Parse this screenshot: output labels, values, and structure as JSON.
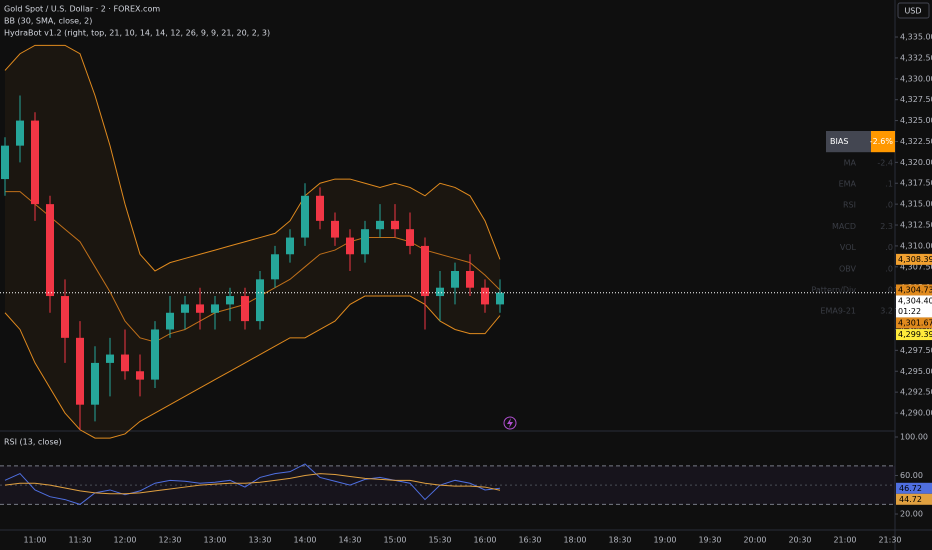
{
  "header": {
    "symbol": "Gold Spot / U.S. Dollar · 2 · FOREX.com",
    "indicator1": "BB (30, SMA, close, 2)",
    "indicator2": "HydraBot v1.2 (right, top, 21, 10, 14, 14, 12, 26, 9, 9, 21, 20, 2, 3)",
    "currency": "USD"
  },
  "chart_data": [
    {
      "type": "candlestick",
      "x": [
        "10:40",
        "10:50",
        "11:00",
        "11:10",
        "11:20",
        "11:30",
        "11:40",
        "11:50",
        "12:00",
        "12:10",
        "12:20",
        "12:30",
        "12:40",
        "12:50",
        "13:00",
        "13:10",
        "13:20",
        "13:30",
        "13:40",
        "13:50",
        "14:00",
        "14:10",
        "14:20",
        "14:30",
        "14:40",
        "14:50",
        "15:00",
        "15:10",
        "15:20",
        "15:30",
        "15:40",
        "15:50",
        "16:00",
        "16:10"
      ],
      "open": [
        4318,
        4322,
        4325,
        4315,
        4304,
        4299,
        4291,
        4296,
        4297,
        4295,
        4294,
        4300,
        4302,
        4303,
        4302,
        4303,
        4304,
        4301,
        4306,
        4309,
        4311,
        4316,
        4313,
        4311,
        4309,
        4312,
        4313,
        4312,
        4310,
        4304,
        4305,
        4307,
        4305,
        4303
      ],
      "high": [
        4323,
        4328,
        4326,
        4316,
        4306,
        4301,
        4298,
        4299,
        4300,
        4297,
        4301,
        4304,
        4304,
        4305,
        4304,
        4305,
        4305,
        4307,
        4310,
        4312,
        4317.5,
        4317,
        4314,
        4312,
        4313,
        4315,
        4315,
        4314,
        4311,
        4307,
        4308,
        4309,
        4306,
        4306
      ],
      "low": [
        4316,
        4320,
        4313,
        4302,
        4296,
        4288,
        4289,
        4292,
        4294,
        4292,
        4293,
        4299,
        4300,
        4300,
        4300,
        4301,
        4300,
        4300,
        4305,
        4308,
        4310,
        4312,
        4310,
        4307,
        4308,
        4311,
        4311,
        4309,
        4300,
        4301,
        4303,
        4304,
        4302,
        4302
      ],
      "close": [
        4322,
        4325,
        4315,
        4304,
        4299,
        4291,
        4296,
        4297,
        4295,
        4294,
        4300,
        4302,
        4303,
        4302,
        4303,
        4304,
        4301,
        4306,
        4309,
        4311,
        4316,
        4313,
        4311,
        4309,
        4312,
        4313,
        4312,
        4310,
        4304,
        4305,
        4307,
        4305,
        4303,
        4304.4
      ],
      "up_color": "#26a69a",
      "down_color": "#f23645",
      "series": [
        {
          "name": "Upper",
          "color": "#e08a1e",
          "values": [
            4331,
            4333,
            4334,
            4334,
            4334,
            4333,
            4328,
            4322,
            4315,
            4309,
            4307,
            4308,
            4308.5,
            4309,
            4309.5,
            4310,
            4310.5,
            4311,
            4311.5,
            4313,
            4316,
            4317.5,
            4318,
            4318,
            4317.5,
            4317,
            4317.5,
            4317,
            4316,
            4317.5,
            4317,
            4316,
            4313,
            4308.39
          ]
        },
        {
          "name": "Basis",
          "color": "#c0701a",
          "values": [
            4316.5,
            4316.5,
            4315,
            4313.5,
            4312,
            4310.5,
            4307.5,
            4304.5,
            4301,
            4299,
            4298.5,
            4299.5,
            4300,
            4301,
            4302,
            4302.5,
            4303,
            4304,
            4305,
            4306,
            4307.5,
            4309,
            4309.5,
            4310.5,
            4311,
            4311,
            4311,
            4310.5,
            4309.5,
            4309,
            4308.5,
            4308,
            4306.5,
            4304.73
          ]
        },
        {
          "name": "Lower",
          "color": "#e08a1e",
          "values": [
            4302,
            4300,
            4296,
            4293,
            4290,
            4288,
            4287,
            4287,
            4287.5,
            4289,
            4290,
            4291,
            4292,
            4293,
            4294,
            4295,
            4296,
            4297,
            4298,
            4299,
            4299,
            4300,
            4301,
            4303,
            4304,
            4304,
            4304,
            4304,
            4303,
            4301,
            4300,
            4299.5,
            4299.5,
            4301.67
          ]
        }
      ],
      "ylim": [
        4287.97,
        4339.43
      ],
      "yticks": [
        {
          "value": 4290,
          "label": "4,290.00"
        },
        {
          "value": 4292.5,
          "label": "4,292.50"
        },
        {
          "value": 4295,
          "label": "4,295.00"
        },
        {
          "value": 4297.5,
          "label": "4,297.50"
        },
        {
          "value": 4300,
          "label": "4,300.00"
        },
        {
          "value": 4302.5,
          "label": "4,302.50"
        },
        {
          "value": 4305,
          "label": "4,305.00"
        },
        {
          "value": 4307.5,
          "label": "4,307.50"
        },
        {
          "value": 4310,
          "label": "4,310.00"
        },
        {
          "value": 4312.5,
          "label": "4,312.50"
        },
        {
          "value": 4315,
          "label": "4,315.00"
        },
        {
          "value": 4317.5,
          "label": "4,317.50"
        },
        {
          "value": 4320,
          "label": "4,320.00"
        },
        {
          "value": 4322.5,
          "label": "4,322.50"
        },
        {
          "value": 4325,
          "label": "4,325.00"
        },
        {
          "value": 4327.5,
          "label": "4,327.50"
        },
        {
          "value": 4330,
          "label": "4,330.00"
        },
        {
          "value": 4332.5,
          "label": "4,332.50"
        },
        {
          "value": 4335,
          "label": "4,335.00"
        }
      ],
      "grid": false,
      "price_labels": [
        {
          "value": 4308.39,
          "label": "4,308.39",
          "color": "#f0a030"
        },
        {
          "value": 4304.73,
          "label": "4,304.73",
          "color": "#e08a1e"
        },
        {
          "value": 4304.4,
          "label": "4,304.40",
          "color": "#ffffff",
          "countdown": "01:22"
        },
        {
          "value": 4301.67,
          "label": "4,301.67",
          "color": "#e08a1e"
        },
        {
          "value": 4299.39,
          "label": "4,299.39",
          "color": "#ffeb3b"
        }
      ],
      "table": [
        [
          "BIAS",
          "-2.6%"
        ],
        [
          "MA",
          "-2.4"
        ],
        [
          "EMA",
          ".1"
        ],
        [
          "RSI",
          ".0"
        ],
        [
          "MACD",
          "2.3"
        ],
        [
          "VOL",
          ".0"
        ],
        [
          "OBV",
          ".0"
        ],
        [
          "Pattern/Div",
          ".0"
        ],
        [
          "EMA9-21",
          "3.2"
        ]
      ]
    },
    {
      "type": "line",
      "title": "RSI (13, close)",
      "x": [
        "10:40",
        "10:50",
        "11:00",
        "11:10",
        "11:20",
        "11:30",
        "11:40",
        "11:50",
        "12:00",
        "12:10",
        "12:20",
        "12:30",
        "12:40",
        "12:50",
        "13:00",
        "13:10",
        "13:20",
        "13:30",
        "13:40",
        "13:50",
        "14:00",
        "14:10",
        "14:20",
        "14:30",
        "14:40",
        "14:50",
        "15:00",
        "15:10",
        "15:20",
        "15:30",
        "15:40",
        "15:50",
        "16:00",
        "16:10"
      ],
      "series": [
        {
          "name": "RSI",
          "color": "#4f6fe0",
          "values": [
            55,
            62,
            45,
            38,
            35,
            30,
            42,
            45,
            40,
            44,
            52,
            55,
            54,
            52,
            53,
            55,
            48,
            58,
            62,
            64,
            72,
            58,
            54,
            50,
            56,
            58,
            55,
            52,
            35,
            50,
            55,
            52,
            45,
            46.72
          ]
        },
        {
          "name": "RSI-based MA",
          "color": "#e0a040",
          "values": [
            50,
            52,
            52,
            50,
            47,
            44,
            42,
            41,
            41,
            42,
            44,
            46,
            48,
            50,
            51,
            52,
            52,
            53,
            55,
            57,
            60,
            62,
            61,
            59,
            57,
            56,
            55,
            55,
            52,
            50,
            49,
            49,
            48,
            44.72
          ]
        }
      ],
      "ylim": [
        3.4,
        105.2
      ],
      "yticks": [
        {
          "value": 20,
          "label": "20.00"
        },
        {
          "value": 60,
          "label": "60.00"
        },
        {
          "value": 100,
          "label": "100.00"
        }
      ],
      "bands": [
        30,
        70
      ],
      "xticks": [
        "11:00",
        "11:30",
        "12:00",
        "12:30",
        "13:00",
        "13:30",
        "14:00",
        "14:30",
        "15:00",
        "15:30",
        "16:00",
        "16:30",
        "18:00",
        "18:30",
        "19:00",
        "19:30",
        "20:00",
        "20:30",
        "21:00",
        "21:30"
      ]
    }
  ]
}
